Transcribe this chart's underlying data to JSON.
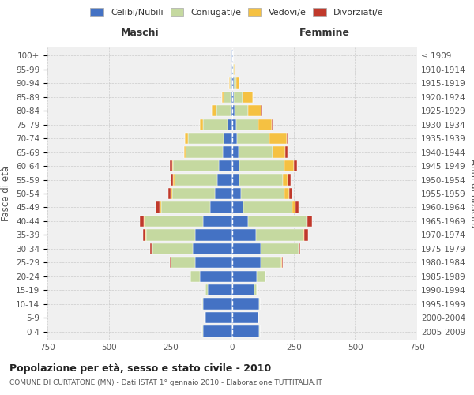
{
  "age_groups": [
    "0-4",
    "5-9",
    "10-14",
    "15-19",
    "20-24",
    "25-29",
    "30-34",
    "35-39",
    "40-44",
    "45-49",
    "50-54",
    "55-59",
    "60-64",
    "65-69",
    "70-74",
    "75-79",
    "80-84",
    "85-89",
    "90-94",
    "95-99",
    "100+"
  ],
  "birth_years": [
    "2005-2009",
    "2000-2004",
    "1995-1999",
    "1990-1994",
    "1985-1989",
    "1980-1984",
    "1975-1979",
    "1970-1974",
    "1965-1969",
    "1960-1964",
    "1955-1959",
    "1950-1954",
    "1945-1949",
    "1940-1944",
    "1935-1939",
    "1930-1934",
    "1925-1929",
    "1920-1924",
    "1915-1919",
    "1910-1914",
    "≤ 1909"
  ],
  "colors": {
    "celibi": "#4472c4",
    "coniugati": "#c5d9a0",
    "vedovi": "#f5c142",
    "divorziati": "#c0392b"
  },
  "maschi": {
    "celibi": [
      120,
      110,
      120,
      100,
      130,
      150,
      160,
      150,
      120,
      90,
      70,
      60,
      55,
      40,
      35,
      20,
      8,
      5,
      3,
      2,
      2
    ],
    "coniugati": [
      2,
      2,
      2,
      10,
      40,
      100,
      165,
      200,
      235,
      200,
      175,
      175,
      185,
      150,
      145,
      100,
      55,
      30,
      8,
      2,
      0
    ],
    "vedovi": [
      0,
      0,
      0,
      0,
      0,
      0,
      2,
      2,
      5,
      5,
      5,
      5,
      5,
      5,
      12,
      12,
      20,
      8,
      2,
      0,
      0
    ],
    "divorziati": [
      0,
      0,
      0,
      0,
      0,
      2,
      5,
      10,
      15,
      15,
      10,
      10,
      8,
      2,
      0,
      0,
      0,
      0,
      0,
      0,
      0
    ]
  },
  "femmine": {
    "celibi": [
      110,
      105,
      110,
      90,
      100,
      115,
      115,
      95,
      65,
      45,
      35,
      30,
      30,
      25,
      20,
      15,
      10,
      8,
      5,
      3,
      2
    ],
    "coniugati": [
      2,
      2,
      3,
      8,
      35,
      85,
      155,
      195,
      235,
      200,
      175,
      175,
      180,
      140,
      130,
      90,
      55,
      35,
      10,
      2,
      0
    ],
    "vedovi": [
      0,
      0,
      0,
      0,
      0,
      2,
      2,
      2,
      5,
      10,
      20,
      20,
      40,
      50,
      70,
      55,
      55,
      40,
      15,
      5,
      0
    ],
    "divorziati": [
      0,
      0,
      0,
      0,
      0,
      2,
      5,
      15,
      20,
      15,
      12,
      12,
      12,
      8,
      5,
      2,
      2,
      0,
      0,
      0,
      0
    ]
  },
  "xlim": 750,
  "title": "Popolazione per età, sesso e stato civile - 2010",
  "subtitle": "COMUNE DI CURTATONE (MN) - Dati ISTAT 1° gennaio 2010 - Elaborazione TUTTITALIA.IT",
  "ylabel_left": "Fasce di età",
  "xlabel_maschi": "Maschi",
  "xlabel_femmine": "Femmine",
  "legend_labels": [
    "Celibi/Nubili",
    "Coniugati/e",
    "Vedovi/e",
    "Divorziati/e"
  ],
  "bg_color": "#f0f0f0",
  "grid_color": "#cccccc"
}
